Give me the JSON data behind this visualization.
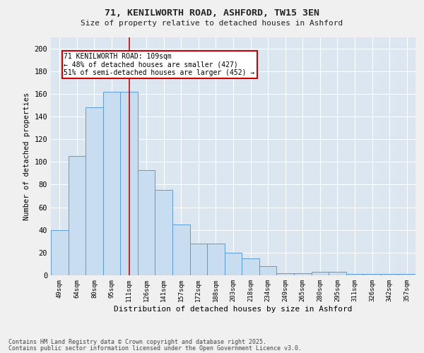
{
  "title": "71, KENILWORTH ROAD, ASHFORD, TW15 3EN",
  "subtitle": "Size of property relative to detached houses in Ashford",
  "xlabel": "Distribution of detached houses by size in Ashford",
  "ylabel": "Number of detached properties",
  "categories": [
    "49sqm",
    "64sqm",
    "80sqm",
    "95sqm",
    "111sqm",
    "126sqm",
    "141sqm",
    "157sqm",
    "172sqm",
    "188sqm",
    "203sqm",
    "218sqm",
    "234sqm",
    "249sqm",
    "265sqm",
    "280sqm",
    "295sqm",
    "311sqm",
    "326sqm",
    "342sqm",
    "357sqm"
  ],
  "values": [
    40,
    105,
    148,
    162,
    162,
    93,
    75,
    45,
    28,
    28,
    20,
    15,
    8,
    2,
    2,
    3,
    3,
    1,
    1,
    1,
    1
  ],
  "bar_color": "#c9ddf0",
  "bar_edge_color": "#5b9bd5",
  "highlight_index": 4,
  "highlight_line_color": "#cc0000",
  "annotation_text": "71 KENILWORTH ROAD: 109sqm\n← 48% of detached houses are smaller (427)\n51% of semi-detached houses are larger (452) →",
  "annotation_box_color": "#ffffff",
  "annotation_box_edge_color": "#cc0000",
  "ylim": [
    0,
    210
  ],
  "yticks": [
    0,
    20,
    40,
    60,
    80,
    100,
    120,
    140,
    160,
    180,
    200
  ],
  "background_color": "#dce6f0",
  "fig_background_color": "#f0f0f0",
  "footer_line1": "Contains HM Land Registry data © Crown copyright and database right 2025.",
  "footer_line2": "Contains public sector information licensed under the Open Government Licence v3.0."
}
